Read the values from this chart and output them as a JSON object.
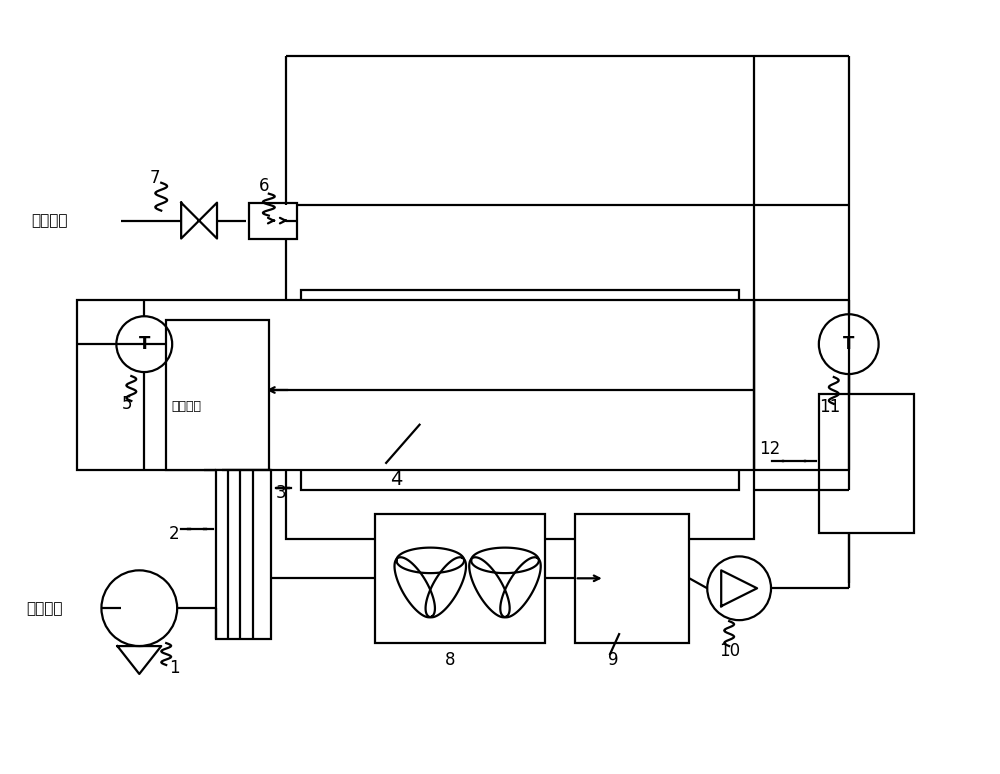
{
  "bg_color": "#ffffff",
  "line_color": "#000000",
  "lw": 1.6,
  "fig_width": 10.0,
  "fig_height": 7.74,
  "labels": {
    "h2_inlet": "氢气入口",
    "air_inlet": "空气入口",
    "air_outlet": "空气出口",
    "n1": "1",
    "n2": "2",
    "n3": "3",
    "n4": "4",
    "n5": "5",
    "n6": "6",
    "n7": "7",
    "n8": "8",
    "n9": "9",
    "n10": "10",
    "n11": "11",
    "n12": "12"
  }
}
